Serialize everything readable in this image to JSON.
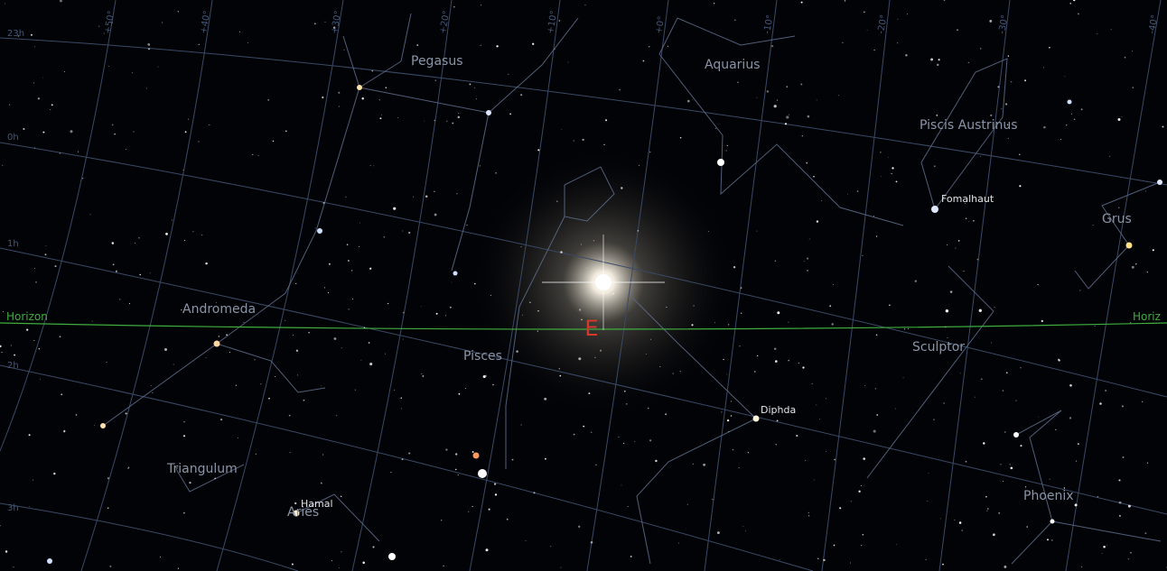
{
  "sky_view": {
    "constellations": [
      "Pegasus",
      "Aquarius",
      "Piscis Austrinus",
      "Grus",
      "Andromeda",
      "Pisces",
      "Sculptor",
      "Triangulum",
      "Aries",
      "Phoenix"
    ],
    "stars": [
      "Fomalhaut",
      "Diphda",
      "Hamal"
    ],
    "horizon_left": "Horizon",
    "horizon_right": "Horiz",
    "cardinal": "E",
    "ra_labels": [
      "23h",
      "0h",
      "1h",
      "2h",
      "3h"
    ],
    "dec_labels": [
      "+50°",
      "+40°",
      "+30°",
      "+20°",
      "+10°",
      "+0°",
      "-10°",
      "-20°",
      "-30°",
      "-40°"
    ]
  }
}
